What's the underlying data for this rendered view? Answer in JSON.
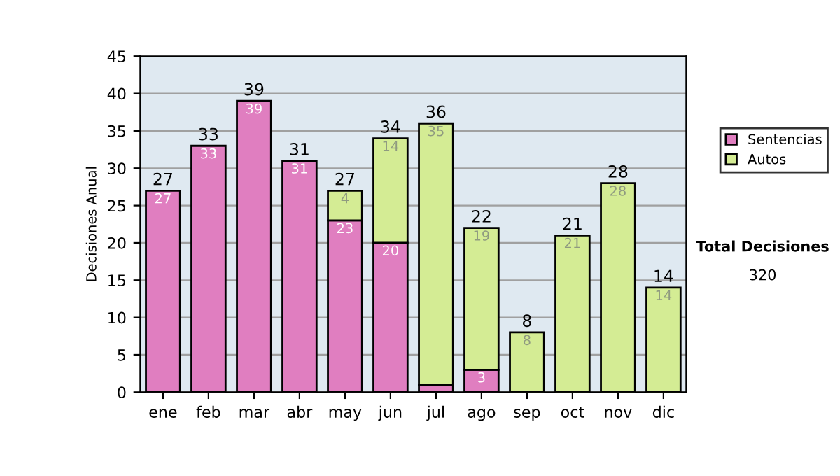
{
  "chart_data": {
    "type": "bar",
    "stacked": true,
    "ylabel": "Decisiones Anual",
    "categories": [
      "ene",
      "feb",
      "mar",
      "abr",
      "may",
      "jun",
      "jul",
      "ago",
      "sep",
      "oct",
      "nov",
      "dic"
    ],
    "series": [
      {
        "name": "Sentencias",
        "color": "#e07ec0",
        "values": [
          27,
          33,
          39,
          31,
          23,
          20,
          1,
          3,
          null,
          null,
          null,
          null
        ],
        "value_labels": [
          "27",
          "33",
          "39",
          "31",
          "23",
          "20",
          null,
          "3",
          null,
          null,
          null,
          null
        ]
      },
      {
        "name": "Autos",
        "color": "#d4ec94",
        "values": [
          null,
          null,
          null,
          null,
          4,
          14,
          35,
          19,
          8,
          21,
          28,
          14
        ],
        "value_labels": [
          null,
          null,
          null,
          null,
          "4",
          "14",
          "35",
          "19",
          "8",
          "21",
          "28",
          "14"
        ]
      }
    ],
    "totals": [
      "27",
      "33",
      "39",
      "31",
      "27",
      "34",
      "36",
      "22",
      "8",
      "21",
      "28",
      "14"
    ],
    "ylim": [
      0,
      45
    ],
    "yticks": [
      0,
      5,
      10,
      15,
      20,
      25,
      30,
      35,
      40,
      45
    ],
    "grid": "y",
    "legend": "right",
    "annotations": [
      "Total Decisiones",
      "320"
    ]
  }
}
